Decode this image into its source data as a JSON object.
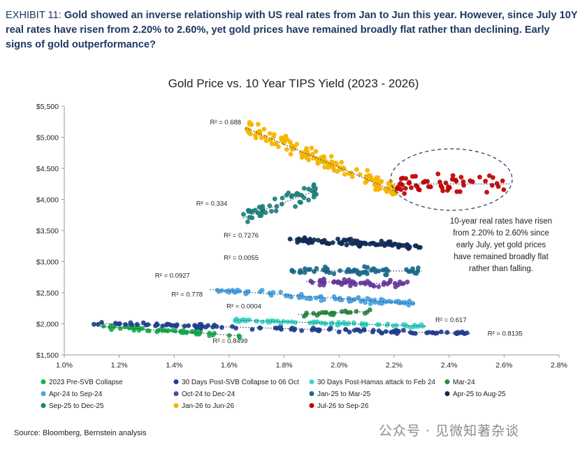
{
  "header": {
    "exhibit": "EXHIBIT 11:",
    "lines": [
      "Gold showed an inverse relationship with US real rates from Jan to Jun this year. However, since July 10Y",
      "real rates have risen from 2.20% to 2.60%, yet gold prices have remained broadly flat rather than declining. Early",
      "signs of gold outperformance?"
    ]
  },
  "source": "Source: Bloomberg, Bernstein analysis",
  "watermark": "公众号 · 见微知著杂谈",
  "colors": {
    "2023 Pre-SVB Collapse": "#1aae4c",
    "30 Days Post-SVB Collapse to 06 Oct": "#1f3f8f",
    "30 Days Post-Hamas attack to Feb 24": "#3dd4c3",
    "Mar-24": "#2b8a3e",
    "Apr-24 to Sep-24": "#4aa3df",
    "Oct-24 to Dec-24": "#6a3a9e",
    "Jan-25 to Mar-25": "#1b6b8c",
    "Apr-25 to Aug-25": "#0f2a55",
    "Sep-25 to Dec-25": "#1e7f77",
    "Jan-26 to Jun-26": "#f5b400",
    "Jul-26 to Sep-26": "#c00000"
  },
  "chart_data": {
    "type": "scatter",
    "title": "Gold Price vs. 10 Year TIPS Yield (2023 - 2026)",
    "xlim": [
      1.0,
      2.8
    ],
    "ylim": [
      1500,
      5500
    ],
    "x_ticks": [
      "1.0%",
      "1.2%",
      "1.4%",
      "1.6%",
      "1.8%",
      "2.0%",
      "2.2%",
      "2.4%",
      "2.6%",
      "2.8%"
    ],
    "y_ticks": [
      "$1,500",
      "$2,000",
      "$2,500",
      "$3,000",
      "$3,500",
      "$4,000",
      "$4,500",
      "$5,000",
      "$5,500"
    ],
    "legend_position": "bottom",
    "series": [
      {
        "name": "2023 Pre-SVB Collapse",
        "x_range": [
          1.12,
          1.65
        ],
        "trend": [
          [
            1.12,
            1960
          ],
          [
            1.65,
            1805
          ]
        ],
        "spread": 30,
        "count": 55
      },
      {
        "name": "30 Days Post-SVB Collapse to 06 Oct",
        "x_range": [
          1.1,
          2.48
        ],
        "trend": [
          [
            1.1,
            2010
          ],
          [
            2.48,
            1840
          ]
        ],
        "spread": 25,
        "count": 110
      },
      {
        "name": "30 Days Post-Hamas attack to Feb 24",
        "x_range": [
          1.62,
          2.32
        ],
        "trend": [
          [
            1.62,
            2060
          ],
          [
            2.32,
            1960
          ]
        ],
        "spread": 20,
        "count": 80
      },
      {
        "name": "Mar-24",
        "x_range": [
          1.85,
          2.12
        ],
        "trend": [
          [
            1.85,
            2150
          ],
          [
            2.12,
            2200
          ]
        ],
        "spread": 30,
        "count": 25
      },
      {
        "name": "Apr-24 to Sep-24",
        "x_range": [
          1.53,
          2.28
        ],
        "trend": [
          [
            1.53,
            2550
          ],
          [
            2.28,
            2320
          ]
        ],
        "spread": 35,
        "count": 90
      },
      {
        "name": "Oct-24 to Dec-24",
        "x_range": [
          1.88,
          2.25
        ],
        "trend": [
          [
            1.88,
            2680
          ],
          [
            2.25,
            2640
          ]
        ],
        "spread": 40,
        "count": 50
      },
      {
        "name": "Jan-25 to Mar-25",
        "x_range": [
          1.82,
          2.3
        ],
        "trend": [
          [
            1.82,
            2850
          ],
          [
            2.3,
            2850
          ]
        ],
        "spread": 50,
        "count": 60
      },
      {
        "name": "Apr-25 to Aug-25",
        "x_range": [
          1.82,
          2.3
        ],
        "trend": [
          [
            1.82,
            3350
          ],
          [
            2.3,
            3250
          ]
        ],
        "spread": 40,
        "count": 90
      },
      {
        "name": "Sep-25 to Dec-25",
        "x_range": [
          1.65,
          1.92
        ],
        "trend": [
          [
            1.65,
            3700
          ],
          [
            1.92,
            4150
          ]
        ],
        "spread": 120,
        "count": 50
      },
      {
        "name": "Jan-26 to Jun-26",
        "x_range": [
          1.66,
          2.22
        ],
        "trend": [
          [
            1.66,
            5150
          ],
          [
            2.22,
            4100
          ]
        ],
        "spread": 110,
        "count": 150
      },
      {
        "name": "Jul-26 to Sep-26",
        "x_range": [
          2.2,
          2.62
        ],
        "trend": [
          [
            2.2,
            4250
          ],
          [
            2.62,
            4250
          ]
        ],
        "spread": 140,
        "count": 55
      }
    ],
    "annotations": [
      {
        "text": "R² = 0.688",
        "x": 1.53,
        "y": 5210
      },
      {
        "text": "R² = 0.334",
        "x": 1.48,
        "y": 3900
      },
      {
        "text": "R² = 0.7276",
        "x": 1.58,
        "y": 3390
      },
      {
        "text": "R² = 0.0055",
        "x": 1.58,
        "y": 3030
      },
      {
        "text": "R² = 0.0927",
        "x": 1.33,
        "y": 2740
      },
      {
        "text": "R² = 0.778",
        "x": 1.39,
        "y": 2440
      },
      {
        "text": "R² = 0.0004",
        "x": 1.59,
        "y": 2250
      },
      {
        "text": "R² = 0.617",
        "x": 2.35,
        "y": 2030
      },
      {
        "text": "R² = 0.8135",
        "x": 2.54,
        "y": 1810
      },
      {
        "text": "R² = 0.8499",
        "x": 1.54,
        "y": 1690
      }
    ],
    "callout": [
      "10-year real rates have risen",
      "from 2.20% to 2.60% since",
      "early July, yet gold prices",
      "have remained broadly flat",
      "rather than falling."
    ]
  }
}
